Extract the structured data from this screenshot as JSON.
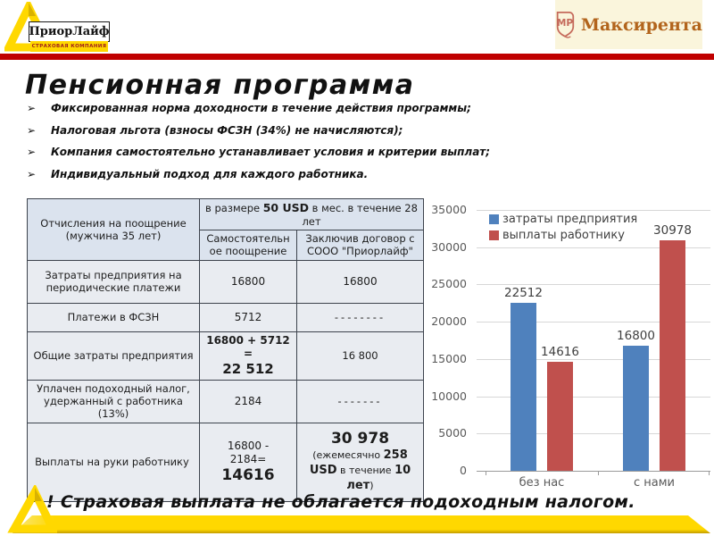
{
  "title": "Пенсионная программа",
  "header": {
    "priorlife": {
      "name": "ПриорЛайф",
      "tagline": "СТРАХОВАЯ КОМПАНИЯ"
    },
    "maxirenta": {
      "name": "Максирента",
      "monogram": "MP"
    }
  },
  "bullet_marker": "➢",
  "bullets": [
    "Фиксированная норма доходности в течение действия программы;",
    "Налоговая льгота (взносы ФСЗН (34%) не начисляются);",
    "Компания самостоятельно устанавливает условия и критерии выплат;",
    "Индивидуальный подход для каждого работника."
  ],
  "table": {
    "header": {
      "col1": "Отчисления на поощрение (мужчина 35 лет)",
      "merged_pre": "в размере ",
      "merged_bold": "50 USD",
      "merged_post": " в мес. в течение 28 лет",
      "sub_self": "Самостоятельное поощрение",
      "sub_contract": "Заключив договор с СООО \"Приорлайф\""
    },
    "rows": {
      "r1": {
        "label": "Затраты предприятия на периодические платежи",
        "self": "16800",
        "contract": "16800"
      },
      "r2": {
        "label": "Платежи в ФСЗН",
        "self": "5712",
        "contract": "--------"
      },
      "r3": {
        "label": "Общие затраты предприятия",
        "self_expr": "16800 + 5712 =",
        "self_total": "22 512",
        "contract_total": "16 800"
      },
      "r4": {
        "label": "Уплачен подоходный налог, удержанный с работника (13%)",
        "self": "2184",
        "contract": "-------"
      },
      "r5": {
        "label": "Выплаты на руки работнику",
        "self_expr1": "16800 -",
        "self_expr2": "2184=",
        "self_total": "14616",
        "contract_total": "30 978",
        "contract_sub_pre": "(ежемесячно ",
        "contract_sub_bold": "258 USD",
        "contract_sub2_pre": " в течение ",
        "contract_sub2_bold": "10 лет",
        "contract_sub2_post": ")"
      }
    }
  },
  "chart_data": {
    "type": "bar",
    "categories": [
      "без нас",
      "с нами"
    ],
    "series": [
      {
        "name": "затраты предприятия",
        "color": "#4F81BD",
        "values": [
          22512,
          16800
        ]
      },
      {
        "name": "выплаты работнику",
        "color": "#C0504D",
        "values": [
          14616,
          30978
        ]
      }
    ],
    "title": "",
    "xlabel": "",
    "ylabel": "",
    "ylim": [
      0,
      35000
    ],
    "ytick_step": 5000,
    "grid": true,
    "legend_position": "top-left-inside",
    "data_labels": true
  },
  "footer": {
    "note": "! Страховая выплата не облагается подоходным налогом."
  },
  "colors": {
    "accent_red": "#C00000",
    "brand_yellow": "#FFD800",
    "bar_blue": "#4F81BD",
    "bar_red": "#C0504D",
    "cream_bg": "#FAF5DC",
    "maxirenta_text": "#B2641C"
  }
}
